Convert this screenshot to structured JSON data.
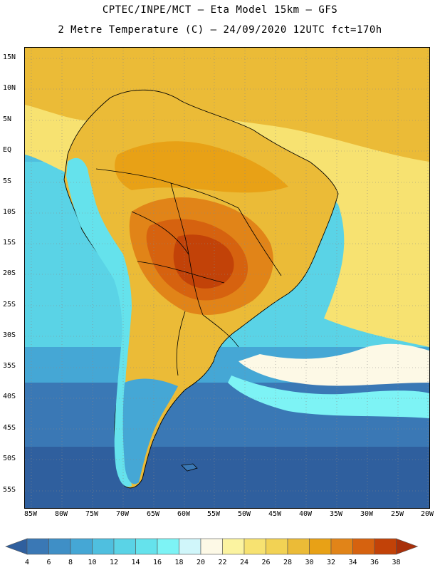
{
  "title_line1": "CPTEC/INPE/MCT –  Eta Model 15km – GFS",
  "title_line2": "2 Metre Temperature (C) – 24/09/2020 12UTC fct=170h",
  "lat_labels": [
    "15N",
    "10N",
    "5N",
    "EQ",
    "5S",
    "10S",
    "15S",
    "20S",
    "25S",
    "30S",
    "35S",
    "40S",
    "45S",
    "50S",
    "55S"
  ],
  "lon_labels": [
    "85W",
    "80W",
    "75W",
    "70W",
    "65W",
    "60W",
    "55W",
    "50W",
    "45W",
    "40W",
    "35W",
    "30W",
    "25W",
    "20W"
  ],
  "colorbar": {
    "levels": [
      "4",
      "6",
      "8",
      "10",
      "12",
      "14",
      "16",
      "18",
      "20",
      "22",
      "24",
      "26",
      "28",
      "30",
      "32",
      "34",
      "36",
      "38"
    ],
    "colors": [
      "#2f5f9e",
      "#3a78b5",
      "#3f8fc6",
      "#45a7d5",
      "#4fbfdf",
      "#5ad3e6",
      "#65e2ec",
      "#7df3f5",
      "#d0f6fa",
      "#fdf9e6",
      "#fbf3a0",
      "#f7e271",
      "#f2d254",
      "#ebbb37",
      "#e8a116",
      "#e18418",
      "#d6620f",
      "#c24208",
      "#a8300a"
    ]
  },
  "map_colors": {
    "ocean_deep": "#2f5f9e",
    "ocean_mid": "#3a78b5",
    "ocean_light": "#45a7d5",
    "ocean_cyan": "#5ad3e6",
    "warm_light": "#f7e271",
    "warm_mid": "#ebbb37",
    "warm_hot": "#e18418",
    "warm_hotter": "#d6620f",
    "warm_hottest": "#c24208",
    "andes_cold": "#65e2ec",
    "coastline": "#000000"
  }
}
